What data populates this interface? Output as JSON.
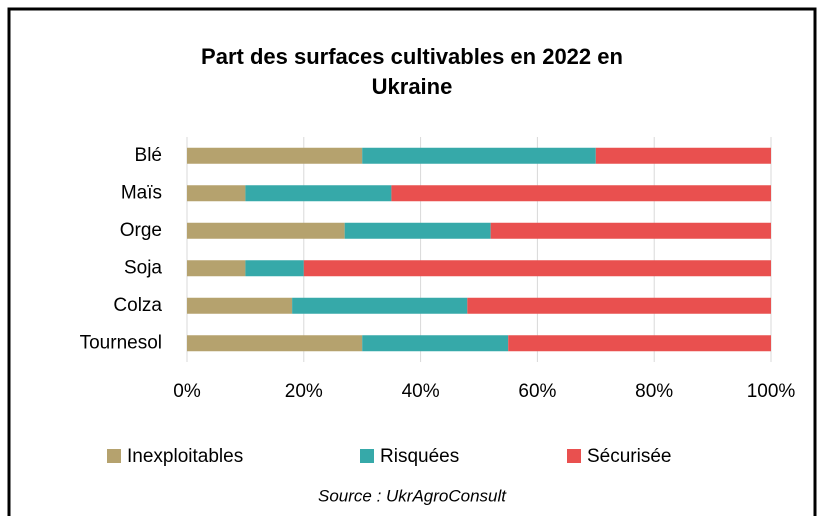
{
  "chart_data": {
    "type": "stacked-bar-horizontal",
    "title": "Part des surfaces cultivables en 2022 en Ukraine",
    "categories": [
      "Blé",
      "Maïs",
      "Orge",
      "Soja",
      "Colza",
      "Tournesol"
    ],
    "series": [
      {
        "name": "Inexploitables",
        "color": "#b5a26e",
        "values": [
          30,
          10,
          27,
          10,
          18,
          30
        ]
      },
      {
        "name": "Risquées",
        "color": "#36a9a9",
        "values": [
          40,
          25,
          25,
          10,
          30,
          25
        ]
      },
      {
        "name": "Sécurisée",
        "color": "#e9504f",
        "values": [
          30,
          65,
          48,
          80,
          52,
          45
        ]
      }
    ],
    "xlim": [
      0,
      100
    ],
    "xticks": [
      {
        "value": 0,
        "label": "0%"
      },
      {
        "value": 20,
        "label": "20%"
      },
      {
        "value": 40,
        "label": "40%"
      },
      {
        "value": 60,
        "label": "60%"
      },
      {
        "value": 80,
        "label": "80%"
      },
      {
        "value": 100,
        "label": "100%"
      }
    ],
    "grid": true,
    "legend": "bottom",
    "source": "Source : UkrAgroConsult"
  }
}
